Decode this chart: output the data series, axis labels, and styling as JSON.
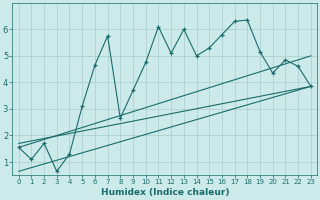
{
  "title": "",
  "xlabel": "Humidex (Indice chaleur)",
  "bg_color": "#cceaea",
  "grid_color": "#aacccc",
  "line_color": "#1a6b6b",
  "xlim": [
    -0.5,
    23.5
  ],
  "ylim": [
    0.5,
    7.0
  ],
  "xticks": [
    0,
    1,
    2,
    3,
    4,
    5,
    6,
    7,
    8,
    9,
    10,
    11,
    12,
    13,
    14,
    15,
    16,
    17,
    18,
    19,
    20,
    21,
    22,
    23
  ],
  "yticks": [
    1,
    2,
    3,
    4,
    5,
    6
  ],
  "main_x": [
    0,
    1,
    2,
    3,
    4,
    5,
    6,
    7,
    8,
    9,
    10,
    11,
    12,
    13,
    14,
    15,
    16,
    17,
    18,
    19,
    20,
    21,
    22,
    23
  ],
  "main_y": [
    1.55,
    1.1,
    1.7,
    0.65,
    1.3,
    3.1,
    4.65,
    5.75,
    2.65,
    3.7,
    4.75,
    6.1,
    5.1,
    6.0,
    5.0,
    5.3,
    5.8,
    6.3,
    6.35,
    5.15,
    4.35,
    4.85,
    4.6,
    3.85
  ],
  "line1_x": [
    0,
    23
  ],
  "line1_y": [
    1.55,
    5.0
  ],
  "line2_x": [
    0,
    23
  ],
  "line2_y": [
    0.65,
    3.85
  ],
  "line3_x": [
    0,
    23
  ],
  "line3_y": [
    1.7,
    3.85
  ]
}
